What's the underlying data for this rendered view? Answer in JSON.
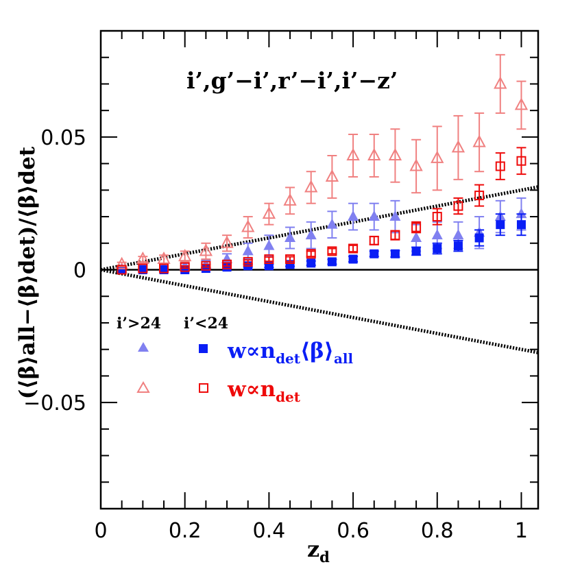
{
  "chart_data": {
    "type": "scatter",
    "title": "",
    "annotation": "i’,g’−i’,r’−i’,i’−z’",
    "xlabel": "z",
    "xlabel_sub": "d",
    "ylabel": "(⟨β⟩all−⟨β⟩det)/⟨β⟩det",
    "xlim": [
      0,
      1.04
    ],
    "ylim": [
      -0.09,
      0.09
    ],
    "x_ticks": [
      "0",
      "0.2",
      "0.4",
      "0.6",
      "0.8",
      "1"
    ],
    "y_ticks": [
      "−0.05",
      "0",
      "0.05"
    ],
    "legend_headers": {
      "faint": "i’>24",
      "bright": "i’<24"
    },
    "legend_labels": {
      "weighted_prefix": "w∝n",
      "weighted_sub": "det",
      "weighted_beta": "⟨β⟩",
      "weighted_beta_sub": "all",
      "plain_prefix": "w∝n",
      "plain_sub": "det"
    },
    "colors": {
      "faint_filled": "#8080f0",
      "bright_filled": "#0a1ef5",
      "faint_open": "#f08080",
      "bright_open": "#ee0a0a",
      "reference": "#000000"
    },
    "reference_lines": [
      {
        "name": "zero",
        "style": "solid",
        "slope": 0
      },
      {
        "name": "upper",
        "style": "dotted",
        "slope": 0.03
      },
      {
        "name": "lower",
        "style": "dotted",
        "slope": -0.03
      }
    ],
    "x": [
      0.05,
      0.1,
      0.15,
      0.2,
      0.25,
      0.3,
      0.35,
      0.4,
      0.45,
      0.5,
      0.55,
      0.6,
      0.65,
      0.7,
      0.75,
      0.8,
      0.85,
      0.9,
      0.95,
      1.0
    ],
    "series": [
      {
        "marker": "triangle-filled",
        "color_key": "faint_filled",
        "legend": "faint",
        "values": [
          0.0005,
          0.001,
          0.001,
          0.0015,
          0.002,
          0.004,
          0.007,
          0.009,
          0.012,
          0.013,
          0.017,
          0.02,
          0.02,
          0.02,
          0.012,
          0.013,
          0.013,
          0.014,
          0.02,
          0.021
        ],
        "errors": [
          0.0005,
          0.0008,
          0.001,
          0.001,
          0.0015,
          0.002,
          0.003,
          0.004,
          0.004,
          0.005,
          0.005,
          0.005,
          0.005,
          0.006,
          0.005,
          0.005,
          0.005,
          0.006,
          0.006,
          0.006
        ]
      },
      {
        "marker": "square-filled",
        "color_key": "bright_filled",
        "legend": "bright",
        "values": [
          0.0,
          0.0,
          0.0,
          0.0,
          0.0005,
          0.001,
          0.0015,
          0.0015,
          0.002,
          0.0025,
          0.003,
          0.004,
          0.006,
          0.006,
          0.007,
          0.008,
          0.009,
          0.012,
          0.017,
          0.017
        ],
        "errors": [
          0.0002,
          0.0002,
          0.0003,
          0.0003,
          0.0004,
          0.0005,
          0.0005,
          0.0006,
          0.0007,
          0.0008,
          0.0009,
          0.001,
          0.001,
          0.0012,
          0.0015,
          0.002,
          0.002,
          0.003,
          0.004,
          0.004
        ]
      },
      {
        "marker": "triangle-open",
        "color_key": "faint_open",
        "legend": "faint",
        "values": [
          0.002,
          0.004,
          0.004,
          0.005,
          0.007,
          0.01,
          0.016,
          0.021,
          0.026,
          0.031,
          0.035,
          0.043,
          0.043,
          0.043,
          0.039,
          0.042,
          0.046,
          0.048,
          0.07,
          0.062
        ],
        "errors": [
          0.0008,
          0.001,
          0.0015,
          0.002,
          0.003,
          0.003,
          0.004,
          0.004,
          0.005,
          0.006,
          0.008,
          0.008,
          0.008,
          0.01,
          0.01,
          0.012,
          0.012,
          0.011,
          0.011,
          0.009
        ]
      },
      {
        "marker": "square-open",
        "color_key": "bright_open",
        "legend": "bright",
        "values": [
          0.0,
          0.0005,
          0.0005,
          0.001,
          0.0015,
          0.002,
          0.003,
          0.004,
          0.004,
          0.006,
          0.007,
          0.008,
          0.011,
          0.013,
          0.016,
          0.02,
          0.024,
          0.028,
          0.039,
          0.041
        ],
        "errors": [
          0.0002,
          0.0002,
          0.0003,
          0.0004,
          0.0005,
          0.0006,
          0.0007,
          0.0008,
          0.0009,
          0.001,
          0.001,
          0.0012,
          0.0015,
          0.0017,
          0.002,
          0.003,
          0.003,
          0.004,
          0.005,
          0.005
        ]
      }
    ]
  }
}
